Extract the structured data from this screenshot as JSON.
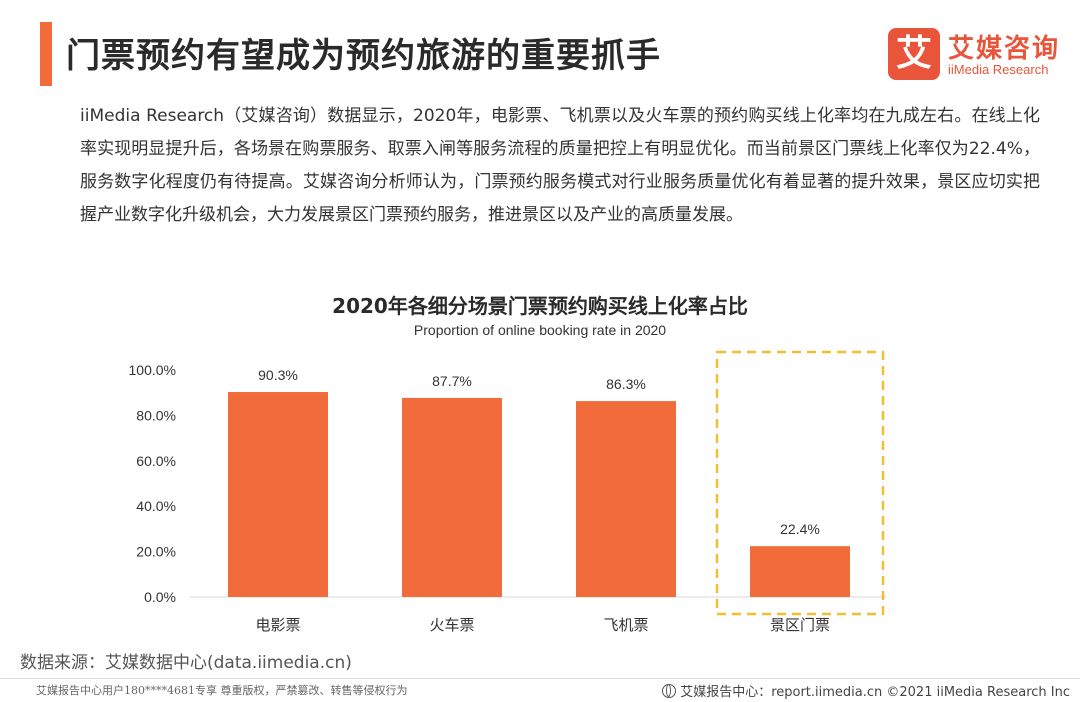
{
  "header": {
    "title": "门票预约有望成为预约旅游的重要抓手",
    "logo_mark": "艾",
    "logo_cn": "艾媒咨询",
    "logo_en": "iiMedia Research",
    "accent_color": "#f26b3a"
  },
  "body_text": "iiMedia Research（艾媒咨询）数据显示，2020年，电影票、飞机票以及火车票的预约购买线上化率均在九成左右。在线上化率实现明显提升后，各场景在购票服务、取票入闸等服务流程的质量把控上有明显优化。而当前景区门票线上化率仅为22.4%，服务数字化程度仍有待提高。艾媒咨询分析师认为，门票预约服务模式对行业服务质量优化有着显著的提升效果，景区应切实把握产业数字化升级机会，大力发展景区门票预约服务，推进景区以及产业的高质量发展。",
  "chart_data": {
    "type": "bar",
    "title": "2020年各细分场景门票预约购买线上化率占比",
    "subtitle": "Proportion of online booking rate in 2020",
    "categories": [
      "电影票",
      "火车票",
      "飞机票",
      "景区门票"
    ],
    "values": [
      90.3,
      87.7,
      86.3,
      22.4
    ],
    "value_labels": [
      "90.3%",
      "87.7%",
      "86.3%",
      "22.4%"
    ],
    "ylim": [
      0,
      100
    ],
    "yticks": [
      "0.0%",
      "20.0%",
      "40.0%",
      "60.0%",
      "80.0%",
      "100.0%"
    ],
    "ytick_values": [
      0,
      20,
      40,
      60,
      80,
      100
    ],
    "bar_color": "#f26b3a",
    "highlight_category": "景区门票",
    "highlight_color": "#f0c030",
    "grid": false
  },
  "source": "数据来源：艾媒数据中心(data.iimedia.cn)",
  "footer": {
    "left": "艾媒报告中心用户180****4681专享 尊重版权，严禁篡改、转售等侵权行为",
    "right": "艾媒报告中心：report.iimedia.cn  ©2021  iiMedia Research Inc"
  }
}
